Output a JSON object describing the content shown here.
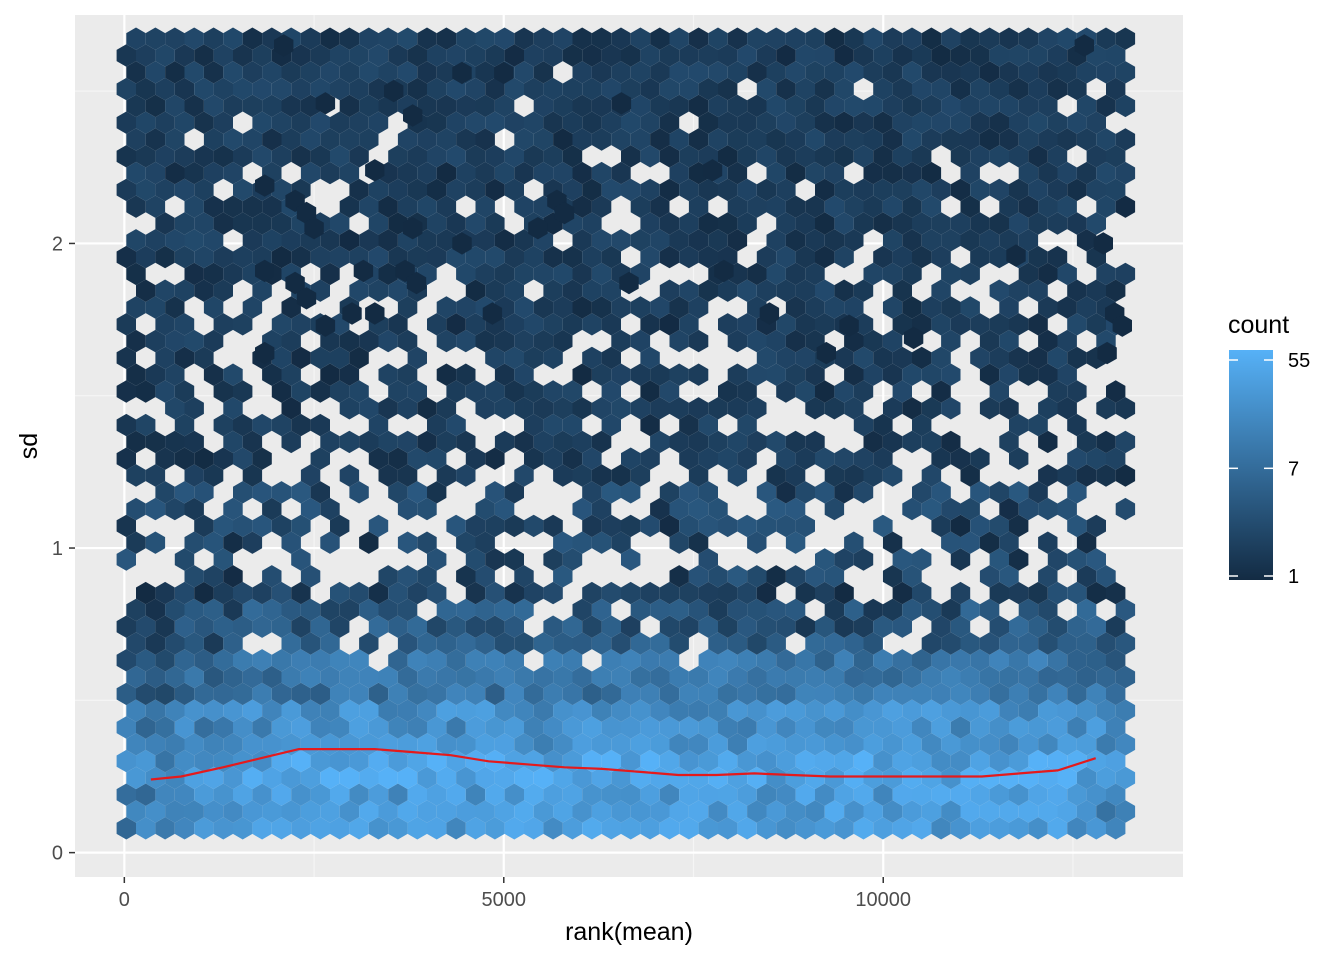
{
  "chart_data": {
    "type": "hexbin",
    "title": "",
    "xlabel": "rank(mean)",
    "ylabel": "sd",
    "xlim": [
      -650,
      13950
    ],
    "ylim": [
      -0.08,
      2.75
    ],
    "x_ticks": [
      0,
      5000,
      10000
    ],
    "x_tick_labels": [
      "0",
      "5000",
      "10000"
    ],
    "y_ticks": [
      0,
      1,
      2
    ],
    "y_tick_labels": [
      "0",
      "1",
      "2"
    ],
    "grid": true,
    "legend": {
      "title": "count",
      "placement": "right",
      "scale": "log",
      "breaks": [
        1,
        7,
        55
      ],
      "break_labels": [
        "1",
        "7",
        "55"
      ],
      "low_color": "#132B43",
      "high_color": "#56B1F7"
    },
    "hex_density_profile": {
      "description_units": "count per hexagon",
      "max_count": 55
    },
    "outlier_points": [
      [
        2100,
        2.65
      ],
      [
        2650,
        2.46
      ],
      [
        3550,
        2.5
      ],
      [
        3800,
        2.42
      ],
      [
        4450,
        2.56
      ],
      [
        5000,
        2.56
      ],
      [
        6550,
        2.46
      ],
      [
        12650,
        2.65
      ],
      [
        3300,
        2.24
      ],
      [
        7750,
        2.24
      ],
      [
        1850,
        2.19
      ],
      [
        2250,
        2.14
      ],
      [
        2400,
        2.1
      ],
      [
        2500,
        2.05
      ],
      [
        3800,
        2.05
      ],
      [
        5450,
        2.05
      ],
      [
        5700,
        2.14
      ],
      [
        5800,
        2.1
      ],
      [
        4450,
        2.0
      ],
      [
        12900,
        2.0
      ],
      [
        1850,
        1.91
      ],
      [
        3150,
        1.91
      ],
      [
        3700,
        1.91
      ],
      [
        7900,
        1.91
      ],
      [
        11750,
        1.96
      ],
      [
        2250,
        1.87
      ],
      [
        3850,
        1.87
      ],
      [
        6650,
        1.87
      ],
      [
        2400,
        1.82
      ],
      [
        3000,
        1.77
      ],
      [
        3300,
        1.77
      ],
      [
        4850,
        1.77
      ],
      [
        8500,
        1.77
      ],
      [
        13050,
        1.77
      ],
      [
        2650,
        1.73
      ],
      [
        9550,
        1.73
      ],
      [
        13150,
        1.73
      ],
      [
        1850,
        1.64
      ],
      [
        9250,
        1.64
      ],
      [
        10400,
        1.69
      ],
      [
        12950,
        1.64
      ]
    ],
    "series": [
      {
        "name": "smooth",
        "color": "#E41A1C",
        "x": [
          350,
          750,
          1300,
          1800,
          2300,
          2800,
          3300,
          3800,
          4300,
          4800,
          5300,
          5800,
          6300,
          6800,
          7300,
          7800,
          8300,
          8800,
          9300,
          9800,
          10300,
          10800,
          11300,
          11800,
          12300,
          12800
        ],
        "y": [
          0.24,
          0.25,
          0.28,
          0.31,
          0.34,
          0.34,
          0.34,
          0.33,
          0.32,
          0.3,
          0.29,
          0.28,
          0.275,
          0.265,
          0.255,
          0.255,
          0.26,
          0.255,
          0.25,
          0.25,
          0.25,
          0.25,
          0.25,
          0.26,
          0.27,
          0.31
        ]
      }
    ]
  }
}
